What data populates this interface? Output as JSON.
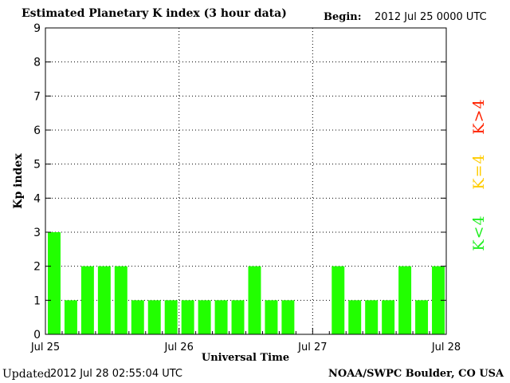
{
  "header": {
    "title": "Estimated Planetary K index (3 hour data)",
    "begin_label": "Begin:",
    "begin_value": "2012 Jul 25 0000 UTC"
  },
  "footer": {
    "updated_label": "Updated",
    "updated_value": "2012 Jul 28 02:55:04 UTC",
    "source": "NOAA/SWPC Boulder, CO USA"
  },
  "legend": [
    {
      "label": "K>4",
      "color": "#ff2200"
    },
    {
      "label": "K=4",
      "color": "#ffcc00"
    },
    {
      "label": "K<4",
      "color": "#22ee22"
    }
  ],
  "chart_data": {
    "type": "bar",
    "title": "Estimated Planetary K index (3 hour data)",
    "xlabel": "Universal Time",
    "ylabel": "Kp index",
    "ylim": [
      0,
      9
    ],
    "yticks": [
      "0",
      "1",
      "2",
      "3",
      "4",
      "5",
      "6",
      "7",
      "8",
      "9"
    ],
    "xticks": [
      "Jul 25",
      "Jul 26",
      "Jul 27",
      "Jul 28"
    ],
    "grid": true,
    "bar_color": "#22ff00",
    "values": [
      3,
      1,
      2,
      2,
      2,
      1,
      1,
      1,
      1,
      1,
      1,
      1,
      2,
      1,
      1,
      null,
      null,
      2,
      1,
      1,
      1,
      2,
      1,
      2
    ]
  }
}
